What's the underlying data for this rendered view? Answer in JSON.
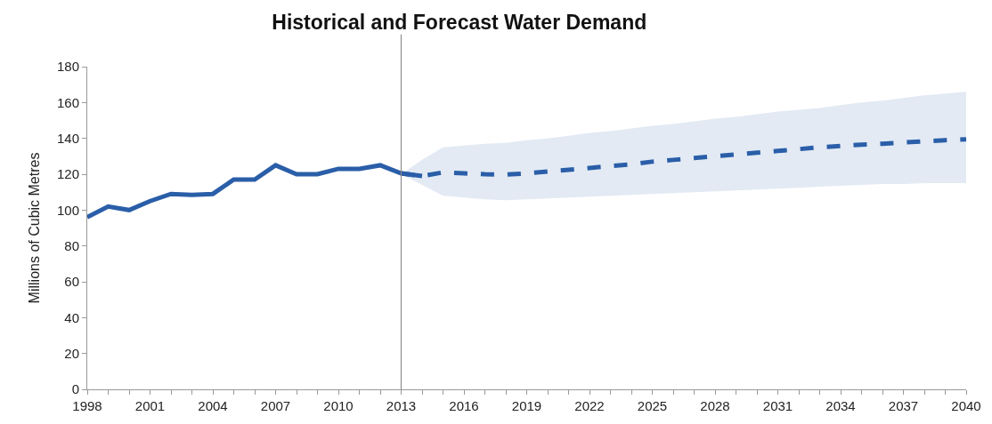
{
  "chart_data": {
    "type": "line",
    "title": "Historical and Forecast Water Demand",
    "ylabel": "Millions of Cubic Metres",
    "series": [
      {
        "color": "#2a5ea8",
        "line_style": "solid",
        "x": [
          1998,
          1999,
          2000,
          2001,
          2002,
          2003,
          2004,
          2005,
          2006,
          2007,
          2008,
          2009,
          2010,
          2011,
          2012,
          2013,
          2014
        ],
        "values": [
          96,
          102,
          100,
          105,
          109,
          108.5,
          109,
          117,
          117,
          125,
          120,
          120,
          123,
          123,
          125,
          120.5,
          119
        ]
      },
      {
        "color": "#2a5ea8",
        "line_style": "dashed",
        "x": [
          2013,
          2014,
          2015,
          2016,
          2017,
          2018,
          2019,
          2020,
          2021,
          2022,
          2023,
          2024,
          2025,
          2026,
          2027,
          2028,
          2029,
          2030,
          2031,
          2032,
          2033,
          2034,
          2035,
          2036,
          2037,
          2038,
          2039,
          2040
        ],
        "values": [
          120.5,
          119,
          121,
          120.5,
          120,
          119.8,
          120.5,
          121.5,
          122.5,
          123.5,
          124.5,
          125.5,
          127,
          128,
          129,
          130,
          131,
          132,
          133,
          134,
          135,
          135.7,
          136.5,
          137,
          137.7,
          138.3,
          139,
          139.5
        ],
        "lower": [
          120,
          114,
          108,
          107,
          106,
          105.5,
          106,
          106.5,
          107,
          107.5,
          108,
          108.5,
          109,
          109.5,
          110,
          110.5,
          111,
          111.5,
          112,
          112.5,
          113,
          113.5,
          114,
          114.5,
          114.5,
          115,
          115,
          115
        ],
        "upper": [
          120,
          128,
          135,
          136,
          137,
          137.5,
          139,
          140,
          141.5,
          143,
          144,
          145.5,
          147,
          148,
          149.5,
          151,
          152,
          153.5,
          155,
          156,
          157,
          158.5,
          160,
          161,
          162.5,
          164,
          165,
          166
        ]
      }
    ],
    "ref_lines": [
      {
        "axis": "x",
        "value": 2013,
        "color": "#8c8c8c"
      }
    ],
    "xlim": [
      1998,
      2040
    ],
    "xticks": [
      1998,
      {
        "value": 1999,
        "label": null
      },
      {
        "value": 2000,
        "label": null
      },
      2001,
      {
        "value": 2002,
        "label": null
      },
      {
        "value": 2003,
        "label": null
      },
      2004,
      {
        "value": 2005,
        "label": null
      },
      {
        "value": 2006,
        "label": null
      },
      2007,
      {
        "value": 2008,
        "label": null
      },
      {
        "value": 2009,
        "label": null
      },
      2010,
      {
        "value": 2011,
        "label": null
      },
      {
        "value": 2012,
        "label": null
      },
      2013,
      {
        "value": 2014,
        "label": null
      },
      {
        "value": 2015,
        "label": null
      },
      2016,
      {
        "value": 2017,
        "label": null
      },
      {
        "value": 2018,
        "label": null
      },
      2019,
      {
        "value": 2020,
        "label": null
      },
      {
        "value": 2021,
        "label": null
      },
      2022,
      {
        "value": 2023,
        "label": null
      },
      {
        "value": 2024,
        "label": null
      },
      2025,
      {
        "value": 2026,
        "label": null
      },
      {
        "value": 2027,
        "label": null
      },
      2028,
      {
        "value": 2029,
        "label": null
      },
      {
        "value": 2030,
        "label": null
      },
      2031,
      {
        "value": 2032,
        "label": null
      },
      {
        "value": 2033,
        "label": null
      },
      2034,
      {
        "value": 2035,
        "label": null
      },
      {
        "value": 2036,
        "label": null
      },
      2037,
      {
        "value": 2038,
        "label": null
      },
      {
        "value": 2039,
        "label": null
      },
      2040
    ],
    "ylim": [
      0,
      180
    ],
    "yticks": [
      0,
      20,
      40,
      60,
      80,
      100,
      120,
      140,
      160,
      180
    ],
    "marker": "none"
  }
}
